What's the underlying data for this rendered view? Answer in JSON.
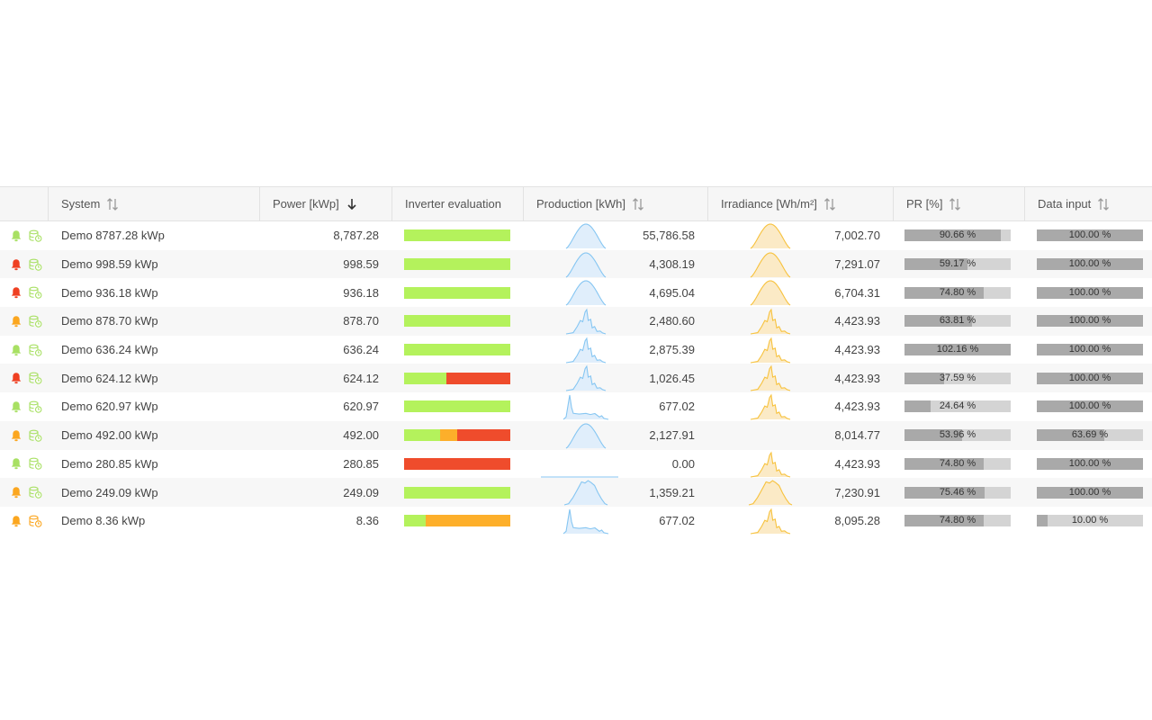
{
  "colors": {
    "green": "#b4f25c",
    "orange": "#fdaf2a",
    "red": "#ef4c2c",
    "bell_green": "#a8e063",
    "bell_orange": "#fba61f",
    "bell_red": "#ef4022",
    "prod_line": "#86c6f2",
    "prod_fill": "#e0eefb",
    "irr_line": "#f7c23d",
    "irr_fill": "#fbeac6",
    "bar_bg": "#d4d4d4",
    "bar_fill": "#a9a9a9"
  },
  "columns": [
    {
      "label": "System",
      "sort": "both"
    },
    {
      "label": "Power [kWp]",
      "sort": "desc"
    },
    {
      "label": "Inverter evaluation",
      "sort": "none"
    },
    {
      "label": "Production [kWh]",
      "sort": "both"
    },
    {
      "label": "Irradiance [Wh/m²]",
      "sort": "both"
    },
    {
      "label": "PR [%]",
      "sort": "both"
    },
    {
      "label": "Data input",
      "sort": "both"
    }
  ],
  "rows": [
    {
      "alert_icon": "bell-icon",
      "alert_color": "green",
      "data_icon": "database-clock-icon",
      "data_color": "green",
      "system": "Demo 8787.28 kWp",
      "power": "8,787.28",
      "inverter": [
        {
          "color": "green",
          "share": 1.0
        }
      ],
      "prod_shape": "bell",
      "production": "55,786.58",
      "irr_shape": "bell",
      "irradiance": "7,002.70",
      "pr_pct": 90.66,
      "pr_label": "90.66 %",
      "di_pct": 100,
      "di_label": "100.00 %"
    },
    {
      "alert_icon": "bell-icon",
      "alert_color": "red",
      "data_icon": "database-clock-icon",
      "data_color": "green",
      "system": "Demo 998.59 kWp",
      "power": "998.59",
      "inverter": [
        {
          "color": "green",
          "share": 1.0
        }
      ],
      "prod_shape": "bell",
      "production": "4,308.19",
      "irr_shape": "bell",
      "irradiance": "7,291.07",
      "pr_pct": 59.17,
      "pr_label": "59.17 %",
      "di_pct": 100,
      "di_label": "100.00 %"
    },
    {
      "alert_icon": "bell-icon",
      "alert_color": "red",
      "data_icon": "database-clock-icon",
      "data_color": "green",
      "system": "Demo 936.18 kWp",
      "power": "936.18",
      "inverter": [
        {
          "color": "green",
          "share": 1.0
        }
      ],
      "prod_shape": "bell",
      "production": "4,695.04",
      "irr_shape": "bell",
      "irradiance": "6,704.31",
      "pr_pct": 74.8,
      "pr_label": "74.80 %",
      "di_pct": 100,
      "di_label": "100.00 %"
    },
    {
      "alert_icon": "bell-icon",
      "alert_color": "orange",
      "data_icon": "database-clock-icon",
      "data_color": "green",
      "system": "Demo 878.70 kWp",
      "power": "878.70",
      "inverter": [
        {
          "color": "green",
          "share": 1.0
        }
      ],
      "prod_shape": "jagged",
      "production": "2,480.60",
      "irr_shape": "jagged",
      "irradiance": "4,423.93",
      "pr_pct": 63.81,
      "pr_label": "63.81 %",
      "di_pct": 100,
      "di_label": "100.00 %"
    },
    {
      "alert_icon": "bell-icon",
      "alert_color": "green",
      "data_icon": "database-clock-icon",
      "data_color": "green",
      "system": "Demo 636.24 kWp",
      "power": "636.24",
      "inverter": [
        {
          "color": "green",
          "share": 1.0
        }
      ],
      "prod_shape": "jagged",
      "production": "2,875.39",
      "irr_shape": "jagged",
      "irradiance": "4,423.93",
      "pr_pct": 100,
      "pr_label": "102.16 %",
      "di_pct": 100,
      "di_label": "100.00 %"
    },
    {
      "alert_icon": "bell-icon",
      "alert_color": "red",
      "data_icon": "database-clock-icon",
      "data_color": "green",
      "system": "Demo 624.12 kWp",
      "power": "624.12",
      "inverter": [
        {
          "color": "green",
          "share": 0.4
        },
        {
          "color": "red",
          "share": 0.6
        }
      ],
      "prod_shape": "jagged",
      "production": "1,026.45",
      "irr_shape": "jagged",
      "irradiance": "4,423.93",
      "pr_pct": 37.59,
      "pr_label": "37.59 %",
      "di_pct": 100,
      "di_label": "100.00 %"
    },
    {
      "alert_icon": "bell-icon",
      "alert_color": "green",
      "data_icon": "database-clock-icon",
      "data_color": "green",
      "system": "Demo 620.97 kWp",
      "power": "620.97",
      "inverter": [
        {
          "color": "green",
          "share": 1.0
        }
      ],
      "prod_shape": "spike",
      "production": "677.02",
      "irr_shape": "jagged",
      "irradiance": "4,423.93",
      "pr_pct": 24.64,
      "pr_label": "24.64 %",
      "di_pct": 100,
      "di_label": "100.00 %"
    },
    {
      "alert_icon": "bell-icon",
      "alert_color": "orange",
      "data_icon": "database-clock-icon",
      "data_color": "green",
      "system": "Demo 492.00 kWp",
      "power": "492.00",
      "inverter": [
        {
          "color": "green",
          "share": 0.34
        },
        {
          "color": "orange",
          "share": 0.16
        },
        {
          "color": "red",
          "share": 0.5
        }
      ],
      "prod_shape": "bell",
      "production": "2,127.91",
      "irr_shape": "none",
      "irradiance": "8,014.77",
      "pr_pct": 53.96,
      "pr_label": "53.96 %",
      "di_pct": 63.69,
      "di_label": "63.69 %"
    },
    {
      "alert_icon": "bell-icon",
      "alert_color": "green",
      "data_icon": "database-clock-icon",
      "data_color": "green",
      "system": "Demo 280.85 kWp",
      "power": "280.85",
      "inverter": [
        {
          "color": "red",
          "share": 1.0
        }
      ],
      "prod_shape": "flat",
      "production": "0.00",
      "irr_shape": "jagged",
      "irradiance": "4,423.93",
      "pr_pct": 74.8,
      "pr_label": "74.80 %",
      "di_pct": 100,
      "di_label": "100.00 %"
    },
    {
      "alert_icon": "bell-icon",
      "alert_color": "orange",
      "data_icon": "database-clock-icon",
      "data_color": "green",
      "system": "Demo 249.09 kWp",
      "power": "249.09",
      "inverter": [
        {
          "color": "green",
          "share": 1.0
        }
      ],
      "prod_shape": "plateau",
      "production": "1,359.21",
      "irr_shape": "plateau",
      "irradiance": "7,230.91",
      "pr_pct": 75.46,
      "pr_label": "75.46 %",
      "di_pct": 100,
      "di_label": "100.00 %"
    },
    {
      "alert_icon": "bell-icon",
      "alert_color": "orange",
      "data_icon": "database-clock-icon",
      "data_color": "orange",
      "system": "Demo 8.36 kWp",
      "power": "8.36",
      "inverter": [
        {
          "color": "green",
          "share": 0.2
        },
        {
          "color": "orange",
          "share": 0.8
        }
      ],
      "prod_shape": "spike",
      "production": "677.02",
      "irr_shape": "jagged",
      "irradiance": "8,095.28",
      "pr_pct": 74.8,
      "pr_label": "74.80 %",
      "di_pct": 10,
      "di_label": "10.00 %"
    }
  ]
}
